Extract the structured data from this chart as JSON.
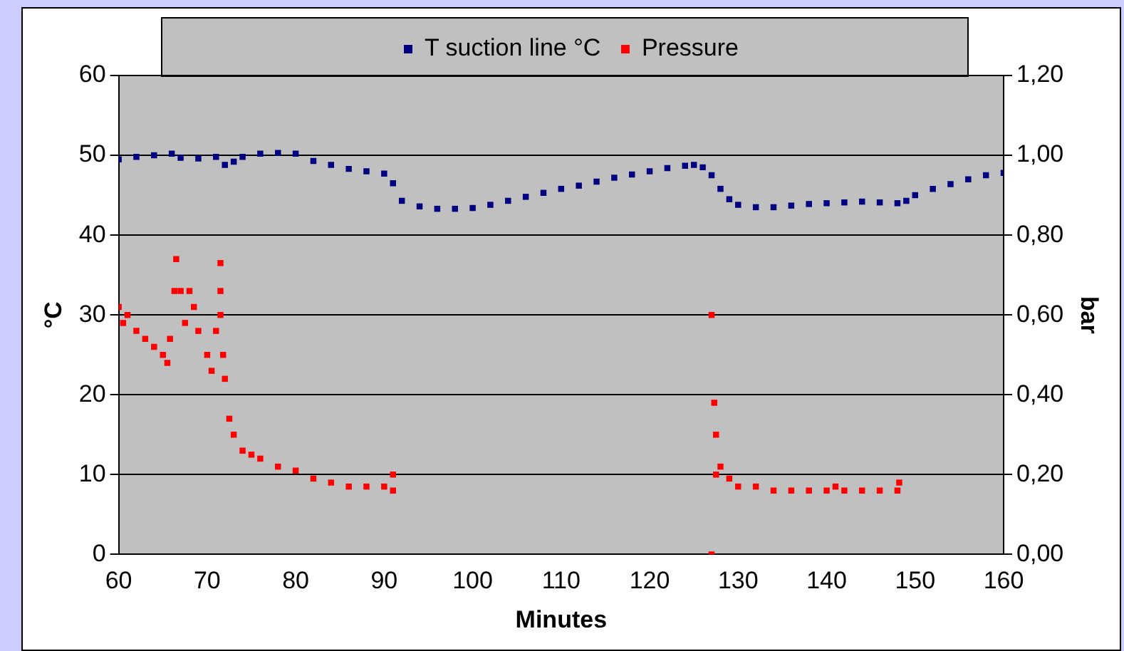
{
  "chart_data": {
    "type": "scatter",
    "xlabel": "Minutes",
    "ylabel": "°C",
    "y2label": "bar",
    "marker": "square",
    "grid": "y",
    "legend": "top",
    "xlim": [
      60,
      160
    ],
    "xticks": [
      60,
      70,
      80,
      90,
      100,
      110,
      120,
      130,
      140,
      150,
      160
    ],
    "ylim": [
      0,
      60
    ],
    "yticks": [
      0,
      10,
      20,
      30,
      40,
      50,
      60
    ],
    "y2lim": [
      0,
      1.2
    ],
    "y2ticks": [
      {
        "value": 0,
        "label": "0,00"
      },
      {
        "value": 0.2,
        "label": "0,20"
      },
      {
        "value": 0.4,
        "label": "0,40"
      },
      {
        "value": 0.6,
        "label": "0,60"
      },
      {
        "value": 0.8,
        "label": "0,80"
      },
      {
        "value": 1,
        "label": "1,00"
      },
      {
        "value": 1.2,
        "label": "1,20"
      }
    ],
    "series": [
      {
        "name": "T suction line °C",
        "color": "#000080",
        "x": [
          60,
          62,
          64,
          66,
          67,
          69,
          71,
          72,
          73,
          74,
          76,
          78,
          80,
          82,
          84,
          86,
          88,
          90,
          91,
          92,
          94,
          96,
          98,
          100,
          102,
          104,
          106,
          108,
          110,
          112,
          114,
          116,
          118,
          120,
          122,
          124,
          125,
          126,
          127,
          128,
          129,
          130,
          132,
          134,
          136,
          138,
          140,
          142,
          144,
          146,
          148,
          149,
          150,
          152,
          154,
          156,
          158,
          160
        ],
        "values": [
          49.5,
          49.8,
          50,
          50.2,
          49.7,
          49.6,
          49.8,
          48.8,
          49.2,
          49.8,
          50.2,
          50.3,
          50.2,
          49.3,
          48.8,
          48.3,
          48,
          47.7,
          46.5,
          44.3,
          43.6,
          43.3,
          43.3,
          43.4,
          43.8,
          44.3,
          44.8,
          45.3,
          45.8,
          46.2,
          46.7,
          47.2,
          47.6,
          48,
          48.4,
          48.7,
          48.8,
          48.5,
          47.5,
          45.8,
          44.5,
          43.8,
          43.5,
          43.5,
          43.7,
          43.9,
          44,
          44.1,
          44.2,
          44.1,
          44,
          44.3,
          45,
          45.8,
          46.4,
          47,
          47.5,
          47.8
        ]
      },
      {
        "name": "Pressure",
        "color": "#ff0000",
        "axis": "y2",
        "x": [
          60,
          60.5,
          61,
          62,
          63,
          64,
          65,
          65.5,
          65.8,
          66.3,
          66.5,
          67,
          67.5,
          68,
          68.5,
          69,
          70,
          70.5,
          71,
          71.5,
          71.5,
          71.5,
          71.8,
          72,
          72.5,
          73,
          74,
          75,
          76,
          78,
          80,
          82,
          84,
          86,
          88,
          90,
          91,
          91,
          127,
          127,
          127.3,
          127.5,
          127.5,
          128,
          129,
          130,
          132,
          134,
          136,
          138,
          140,
          141,
          142,
          144,
          146,
          148,
          148.2
        ],
        "values": [
          0.62,
          0.58,
          0.6,
          0.56,
          0.54,
          0.52,
          0.5,
          0.48,
          0.54,
          0.66,
          0.74,
          0.66,
          0.58,
          0.66,
          0.62,
          0.56,
          0.5,
          0.46,
          0.56,
          0.73,
          0.66,
          0.6,
          0.5,
          0.44,
          0.34,
          0.3,
          0.26,
          0.25,
          0.24,
          0.22,
          0.21,
          0.19,
          0.18,
          0.17,
          0.17,
          0.17,
          0.16,
          0.2,
          0.6,
          0,
          0.38,
          0.3,
          0.2,
          0.22,
          0.19,
          0.17,
          0.17,
          0.16,
          0.16,
          0.16,
          0.16,
          0.17,
          0.16,
          0.16,
          0.16,
          0.16,
          0.18
        ]
      }
    ]
  }
}
